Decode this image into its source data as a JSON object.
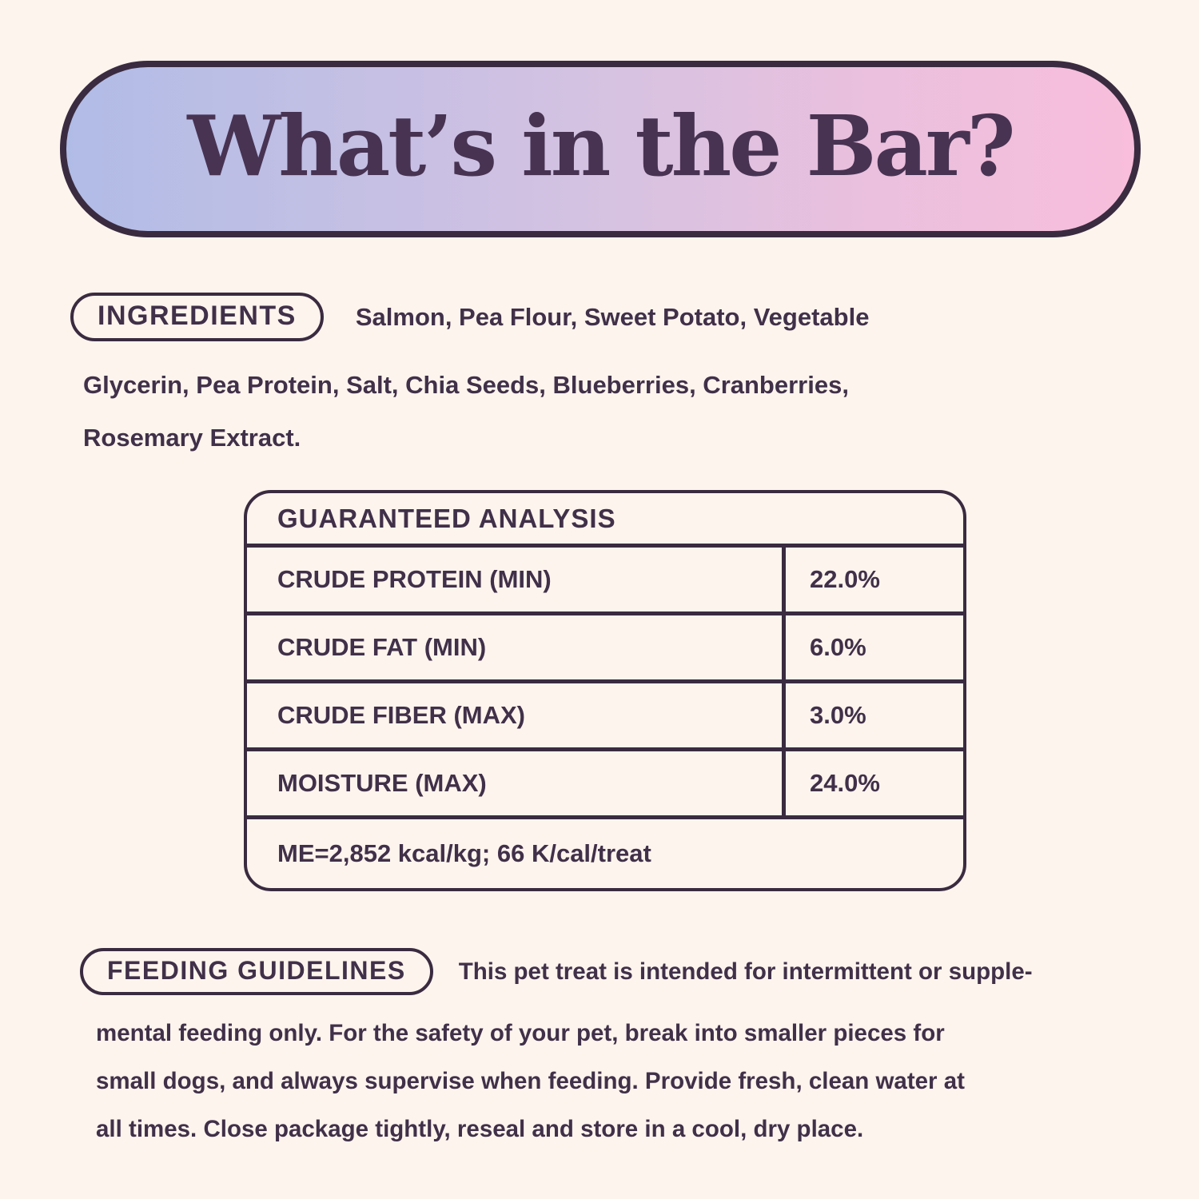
{
  "page": {
    "background_color": "#fdf4ed",
    "text_color": "#413049",
    "border_color": "#3a2b40"
  },
  "header": {
    "title": "What’s in the Bar?",
    "gradient_left_color": "#b1bce6",
    "gradient_mid_color": "#d7c2e1",
    "gradient_right_color": "#f8bedb"
  },
  "ingredients": {
    "label": "INGREDIENTS",
    "full_text": "Salmon, Pea Flour, Sweet Potato, Vegetable Glycerin, Pea Protein, Salt, Chia Seeds, Blueberries, Cranberries, Rosemary Extract.",
    "lines": [
      "Salmon, Pea Flour, Sweet Potato, Vegetable",
      "Glycerin, Pea Protein, Salt, Chia Seeds, Blueberries, Cranberries,",
      "Rosemary Extract."
    ]
  },
  "analysis": {
    "title": "GUARANTEED ANALYSIS",
    "rows": [
      {
        "label": "CRUDE PROTEIN (MIN)",
        "value": "22.0%"
      },
      {
        "label": "CRUDE FAT (MIN)",
        "value": "6.0%"
      },
      {
        "label": "CRUDE FIBER (MAX)",
        "value": "3.0%"
      },
      {
        "label": "MOISTURE (MAX)",
        "value": "24.0%"
      }
    ],
    "footnote": "ME=2,852 kcal/kg; 66 K/cal/treat"
  },
  "feeding": {
    "label": "FEEDING GUIDELINES",
    "full_text": "This pet treat is intended for intermittent or supplemental feeding only. For the safety of your pet, break into smaller pieces for small dogs, and always supervise when feeding. Provide fresh, clean water at all times. Close package tightly, reseal and store in a cool, dry place.",
    "lines": [
      "This pet treat is intended for intermittent or supple-",
      "mental feeding only. For the safety of your pet, break into smaller pieces for",
      "small dogs, and always supervise when feeding. Provide fresh, clean water at",
      "all times. Close package tightly, reseal and store in a cool, dry place."
    ]
  }
}
